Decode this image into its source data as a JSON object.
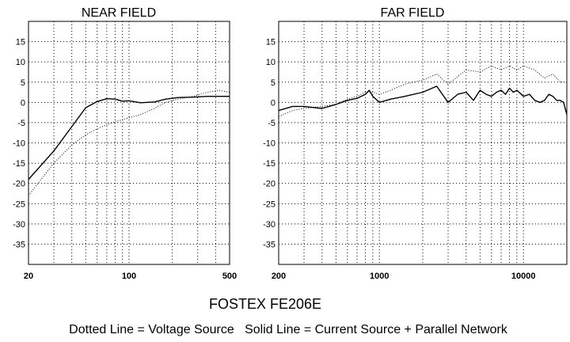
{
  "figure": {
    "caption": "FOSTEX FE206E",
    "legend_text": "Dotted Line = Voltage Source   Solid Line = Current Source + Parallel Network"
  },
  "chart_data": [
    {
      "type": "line",
      "title": "NEAR FIELD",
      "x_scale": "log",
      "xlim": [
        20,
        500
      ],
      "ylim": [
        -40,
        20
      ],
      "x_ticks": [
        20,
        100,
        500
      ],
      "x_tick_labels": [
        "20",
        "100",
        "500"
      ],
      "y_ticks": [
        15,
        10,
        5,
        0,
        -5,
        -10,
        -15,
        -20,
        -25,
        -30,
        -35
      ],
      "y_tick_labels": [
        "15",
        "10",
        "5",
        "0",
        "-5",
        "-10",
        "-15",
        "-20",
        "-25",
        "-30",
        "-35"
      ],
      "grid": true,
      "series": [
        {
          "style": "solid",
          "x": [
            20,
            30,
            40,
            50,
            60,
            70,
            80,
            90,
            100,
            120,
            150,
            180,
            220,
            280,
            350,
            420,
            500
          ],
          "y": [
            -19,
            -12,
            -6,
            -1.3,
            0.2,
            0.9,
            0.8,
            0.3,
            0.4,
            -0.1,
            0.1,
            0.8,
            1.2,
            1.3,
            1.5,
            1.5,
            1.5
          ]
        },
        {
          "style": "dotted",
          "x": [
            20,
            30,
            40,
            50,
            60,
            70,
            80,
            100,
            120,
            150,
            180,
            220,
            280,
            350,
            420,
            500
          ],
          "y": [
            -23,
            -15,
            -10.5,
            -8,
            -6.5,
            -5.5,
            -4.8,
            -3.8,
            -3,
            -1.5,
            0,
            0.8,
            1.5,
            2.5,
            3,
            2.5
          ]
        }
      ]
    },
    {
      "type": "line",
      "title": "FAR FIELD",
      "x_scale": "log",
      "xlim": [
        200,
        20000
      ],
      "ylim": [
        -40,
        20
      ],
      "x_ticks": [
        200,
        1000,
        10000
      ],
      "x_tick_labels": [
        "200",
        "1000",
        "10000"
      ],
      "y_ticks": [
        15,
        10,
        5,
        0,
        -5,
        -10,
        -15,
        -20,
        -25,
        -30,
        -35
      ],
      "y_tick_labels": [
        "15",
        "10",
        "5",
        "0",
        "-5",
        "-10",
        "-15",
        "-20",
        "-25",
        "-30",
        "-35"
      ],
      "grid": true,
      "series": [
        {
          "style": "solid",
          "x": [
            200,
            250,
            300,
            400,
            500,
            600,
            700,
            800,
            850,
            900,
            1000,
            1200,
            1500,
            2000,
            2500,
            3000,
            3500,
            4000,
            4500,
            5000,
            5500,
            6000,
            6500,
            7000,
            7500,
            8000,
            8500,
            9000,
            10000,
            11000,
            12000,
            13000,
            14000,
            15000,
            16000,
            17000,
            18000,
            19000,
            20000
          ],
          "y": [
            -2,
            -1,
            -1,
            -1.5,
            -0.5,
            0.5,
            1,
            2,
            3,
            1.5,
            0,
            0.8,
            1.5,
            2.5,
            4,
            0,
            2,
            2.5,
            0.5,
            3,
            2,
            1.5,
            2.5,
            3,
            2,
            3.5,
            2.5,
            3,
            1.5,
            2,
            0.5,
            0,
            0.5,
            2,
            1.5,
            0.5,
            0.5,
            0,
            -3
          ]
        },
        {
          "style": "dotted",
          "x": [
            200,
            250,
            300,
            400,
            500,
            600,
            700,
            800,
            900,
            1000,
            1200,
            1500,
            2000,
            2500,
            3000,
            4000,
            5000,
            6000,
            7000,
            8000,
            9000,
            10000,
            12000,
            14000,
            16000,
            18000,
            20000
          ],
          "y": [
            -3.5,
            -2,
            -1.5,
            -1,
            -0.5,
            0.8,
            1.5,
            2.5,
            2.5,
            2,
            3,
            4.5,
            5.5,
            7,
            4.5,
            8,
            7.5,
            9,
            8,
            9,
            8,
            9,
            8,
            6,
            7,
            5,
            5
          ]
        }
      ]
    }
  ]
}
